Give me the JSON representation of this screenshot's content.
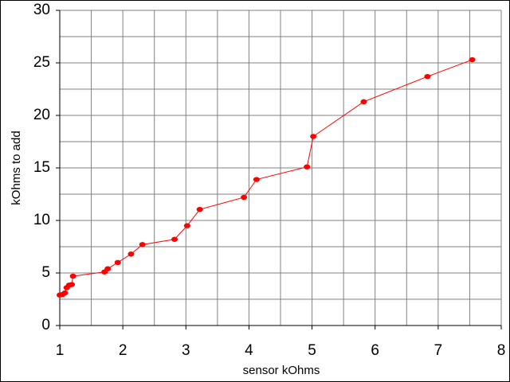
{
  "chart_data": {
    "type": "line",
    "x_label": "sensor kOhms",
    "y_label": "kOhms to add",
    "x": [
      1.0,
      1.04,
      1.08,
      1.11,
      1.15,
      1.19,
      1.21,
      1.71,
      1.76,
      1.92,
      2.13,
      2.31,
      2.82,
      3.02,
      3.22,
      3.92,
      4.12,
      4.92,
      5.02,
      5.82,
      6.83,
      7.54
    ],
    "values": [
      2.9,
      2.95,
      3.1,
      3.6,
      3.85,
      3.9,
      4.7,
      5.1,
      5.4,
      6.0,
      6.8,
      7.7,
      8.2,
      9.5,
      11.05,
      12.2,
      13.9,
      15.1,
      18.0,
      21.3,
      23.7,
      25.3
    ],
    "color": "#ff0000",
    "xlim": [
      1,
      8
    ],
    "ylim": [
      0,
      30
    ],
    "xticks": [
      1,
      2,
      3,
      4,
      5,
      6,
      7,
      8
    ],
    "yticks": [
      0,
      5,
      10,
      15,
      20,
      25,
      30
    ],
    "xgrid": [
      1.5,
      2,
      2.5,
      3,
      3.5,
      4,
      4.5,
      5,
      5.5,
      6,
      6.5,
      7,
      7.5,
      8
    ],
    "ygrid": [
      2.5,
      5,
      7.5,
      10,
      12.5,
      15,
      17.5,
      20,
      22.5,
      25,
      27.5,
      30
    ],
    "grid": true
  }
}
